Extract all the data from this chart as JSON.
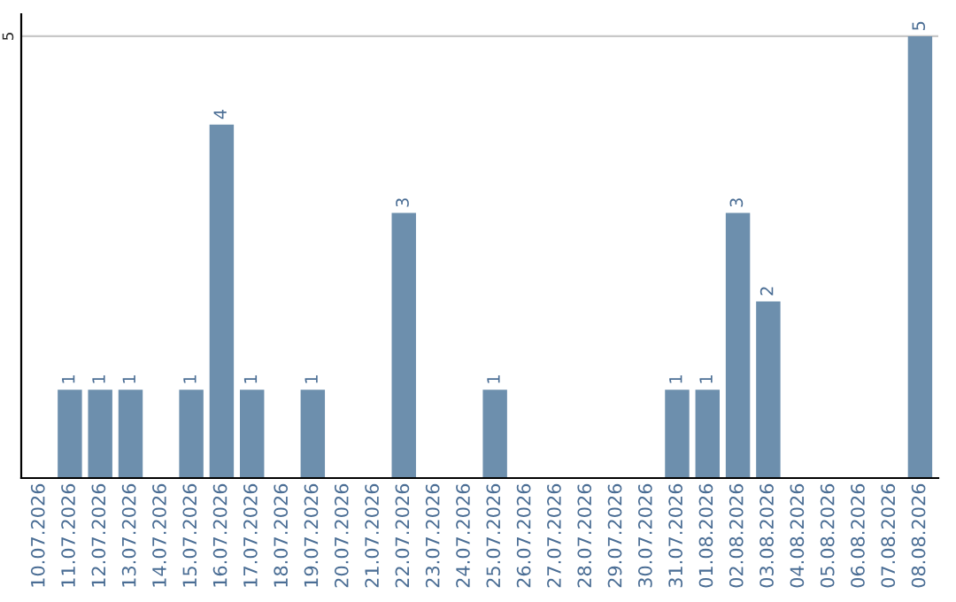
{
  "chart_data": {
    "type": "bar",
    "categories": [
      "10.07.2026",
      "11.07.2026",
      "12.07.2026",
      "13.07.2026",
      "14.07.2026",
      "15.07.2026",
      "16.07.2026",
      "17.07.2026",
      "18.07.2026",
      "19.07.2026",
      "20.07.2026",
      "21.07.2026",
      "22.07.2026",
      "23.07.2026",
      "24.07.2026",
      "25.07.2026",
      "26.07.2026",
      "27.07.2026",
      "28.07.2026",
      "29.07.2026",
      "30.07.2026",
      "31.07.2026",
      "01.08.2026",
      "02.08.2026",
      "03.08.2026",
      "04.08.2026",
      "05.08.2026",
      "06.08.2026",
      "07.08.2026",
      "08.08.2026"
    ],
    "values": [
      0,
      1,
      1,
      1,
      0,
      1,
      4,
      1,
      0,
      1,
      0,
      0,
      3,
      0,
      0,
      1,
      0,
      0,
      0,
      0,
      0,
      1,
      1,
      3,
      2,
      0,
      0,
      0,
      0,
      5
    ],
    "value_labels": [
      null,
      "1",
      "1",
      "1",
      null,
      "1",
      "4",
      "1",
      null,
      "1",
      null,
      null,
      "3",
      null,
      null,
      "1",
      null,
      null,
      null,
      null,
      null,
      "1",
      "1",
      "3",
      "2",
      null,
      null,
      null,
      null,
      "5"
    ],
    "color": "#6d8fad",
    "ylim": [
      0,
      5.25
    ],
    "yticks": [
      5
    ],
    "grid": "y",
    "legend": false
  }
}
